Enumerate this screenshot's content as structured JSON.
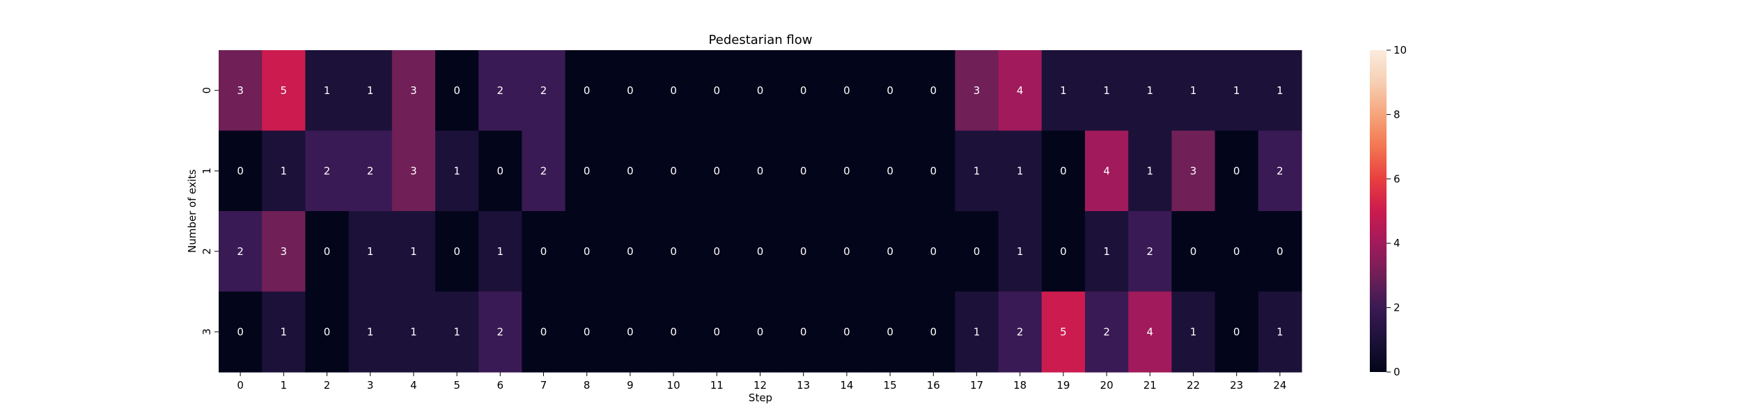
{
  "chart_data": {
    "type": "heatmap",
    "title": "Pedestarian flow",
    "xlabel": "Step",
    "ylabel": "Number of exits",
    "x_categories": [
      "0",
      "1",
      "2",
      "3",
      "4",
      "5",
      "6",
      "7",
      "8",
      "9",
      "10",
      "11",
      "12",
      "13",
      "14",
      "15",
      "16",
      "17",
      "18",
      "19",
      "20",
      "21",
      "22",
      "23",
      "24"
    ],
    "y_categories": [
      "0",
      "1",
      "2",
      "3"
    ],
    "values": [
      [
        3,
        5,
        1,
        1,
        3,
        0,
        2,
        2,
        0,
        0,
        0,
        0,
        0,
        0,
        0,
        0,
        0,
        3,
        4,
        1,
        1,
        1,
        1,
        1,
        1
      ],
      [
        0,
        1,
        2,
        2,
        3,
        1,
        0,
        2,
        0,
        0,
        0,
        0,
        0,
        0,
        0,
        0,
        0,
        1,
        1,
        0,
        4,
        1,
        3,
        0,
        2
      ],
      [
        2,
        3,
        0,
        1,
        1,
        0,
        1,
        0,
        0,
        0,
        0,
        0,
        0,
        0,
        0,
        0,
        0,
        0,
        1,
        0,
        1,
        2,
        0,
        0,
        0
      ],
      [
        0,
        1,
        0,
        1,
        1,
        1,
        2,
        0,
        0,
        0,
        0,
        0,
        0,
        0,
        0,
        0,
        0,
        1,
        2,
        5,
        2,
        4,
        1,
        0,
        1
      ]
    ],
    "colorbar": {
      "min": 0,
      "max": 10,
      "ticks": [
        "0",
        "2",
        "4",
        "6",
        "8",
        "10"
      ],
      "colormap": "rocket"
    },
    "annotations": true,
    "grid": false
  }
}
